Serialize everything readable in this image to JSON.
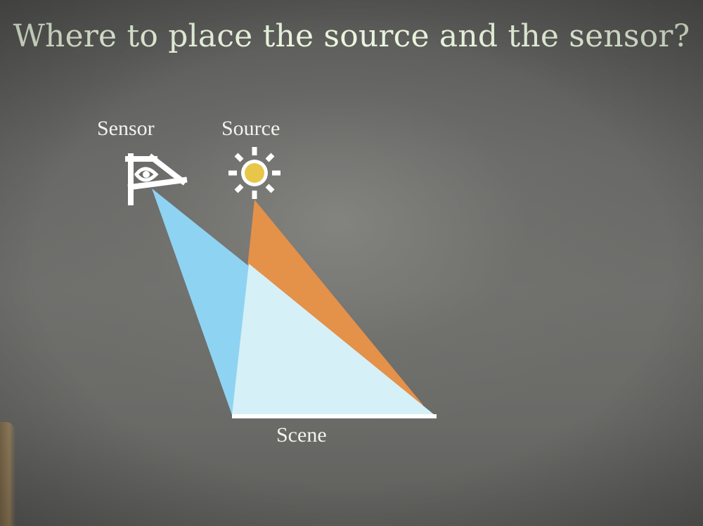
{
  "title": "Where to place the source and the sensor?",
  "labels": {
    "sensor": "Sensor",
    "source": "Source",
    "scene": "Scene"
  },
  "icons": {
    "sensor": "eye-icon",
    "source": "sun-icon"
  },
  "colors": {
    "title_text": "#eaf7df",
    "label_text": "#f3f3ee",
    "sensor_beam": "#8fd3f2",
    "source_beam": "#e4914a",
    "overlap": "#d6f0f7",
    "sun_core": "#e8c64a",
    "icon_stroke": "#ffffff",
    "scene_line": "#ffffff"
  }
}
